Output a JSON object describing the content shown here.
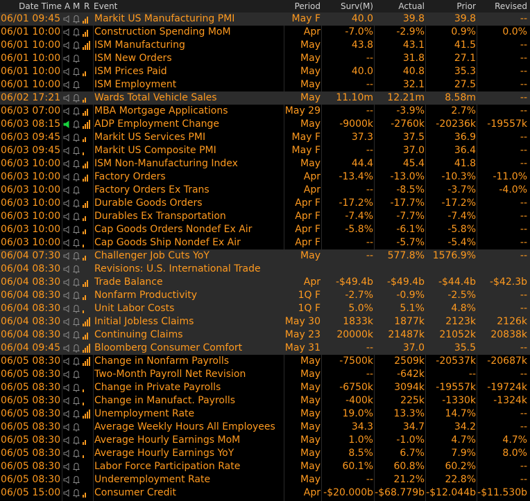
{
  "header": {
    "datetime": "Date Time",
    "a": "A",
    "m": "M",
    "r": "R",
    "event": "Event",
    "period": "Period",
    "surv": "Surv(M)",
    "actual": "Actual",
    "prior": "Prior",
    "revised": "Revised"
  },
  "colors": {
    "accent": "#ff9a1f",
    "alert_green": "#19d13f",
    "row_highlight": "#2c2c2c",
    "header_bg": "#1e1e1e",
    "icon_gray": "#8a8a8a"
  },
  "rows": [
    {
      "datetime": "06/01 09:45",
      "event": "Markit US Manufacturing PMI",
      "period": "May F",
      "surv": "40.0",
      "actual": "39.8",
      "prior": "39.8",
      "revised": "--",
      "bars": 3,
      "alert": false,
      "shade": true
    },
    {
      "datetime": "06/01 10:00",
      "event": "Construction Spending MoM",
      "period": "Apr",
      "surv": "-7.0%",
      "actual": "-2.9%",
      "prior": "0.9%",
      "revised": "0.0%",
      "bars": 3,
      "alert": false,
      "shade": false
    },
    {
      "datetime": "06/01 10:00",
      "event": "ISM Manufacturing",
      "period": "May",
      "surv": "43.8",
      "actual": "43.1",
      "prior": "41.5",
      "revised": "--",
      "bars": 4,
      "alert": false,
      "shade": false
    },
    {
      "datetime": "06/01 10:00",
      "event": "ISM New Orders",
      "period": "May",
      "surv": "--",
      "actual": "31.8",
      "prior": "27.1",
      "revised": "--",
      "bars": 0,
      "alert": false,
      "shade": false
    },
    {
      "datetime": "06/01 10:00",
      "event": "ISM Prices Paid",
      "period": "May",
      "surv": "40.0",
      "actual": "40.8",
      "prior": "35.3",
      "revised": "--",
      "bars": 2,
      "alert": false,
      "shade": false
    },
    {
      "datetime": "06/01 10:00",
      "event": "ISM Employment",
      "period": "May",
      "surv": "--",
      "actual": "32.1",
      "prior": "27.5",
      "revised": "--",
      "bars": 0,
      "alert": false,
      "shade": false
    },
    {
      "datetime": "06/02 17:21",
      "event": "Wards Total Vehicle Sales",
      "period": "May",
      "surv": "11.10m",
      "actual": "12.21m",
      "prior": "8.58m",
      "revised": "--",
      "bars": 2,
      "alert": false,
      "shade": true
    },
    {
      "datetime": "06/03 07:00",
      "event": "MBA Mortgage Applications",
      "period": "May 29",
      "surv": "--",
      "actual": "-3.9%",
      "prior": "2.7%",
      "revised": "--",
      "bars": 3,
      "alert": false,
      "shade": false
    },
    {
      "datetime": "06/03 08:15",
      "event": "ADP Employment Change",
      "period": "May",
      "surv": "-9000k",
      "actual": "-2760k",
      "prior": "-20236k",
      "revised": "-19557k",
      "bars": 4,
      "alert": true,
      "shade": false
    },
    {
      "datetime": "06/03 09:45",
      "event": "Markit US Services PMI",
      "period": "May F",
      "surv": "37.3",
      "actual": "37.5",
      "prior": "36.9",
      "revised": "--",
      "bars": 2,
      "alert": false,
      "shade": false
    },
    {
      "datetime": "06/03 09:45",
      "event": "Markit US Composite PMI",
      "period": "May F",
      "surv": "--",
      "actual": "37.0",
      "prior": "36.4",
      "revised": "--",
      "bars": 1,
      "alert": false,
      "shade": false
    },
    {
      "datetime": "06/03 10:00",
      "event": "ISM Non-Manufacturing Index",
      "period": "May",
      "surv": "44.4",
      "actual": "45.4",
      "prior": "41.8",
      "revised": "--",
      "bars": 3,
      "alert": false,
      "shade": false
    },
    {
      "datetime": "06/03 10:00",
      "event": "Factory Orders",
      "period": "Apr",
      "surv": "-13.4%",
      "actual": "-13.0%",
      "prior": "-10.3%",
      "revised": "-11.0%",
      "bars": 3,
      "alert": false,
      "shade": false
    },
    {
      "datetime": "06/03 10:00",
      "event": "Factory Orders Ex Trans",
      "period": "Apr",
      "surv": "--",
      "actual": "-8.5%",
      "prior": "-3.7%",
      "revised": "-4.0%",
      "bars": 0,
      "alert": false,
      "shade": false
    },
    {
      "datetime": "06/03 10:00",
      "event": "Durable Goods Orders",
      "period": "Apr F",
      "surv": "-17.2%",
      "actual": "-17.7%",
      "prior": "-17.2%",
      "revised": "--",
      "bars": 3,
      "alert": false,
      "shade": false
    },
    {
      "datetime": "06/03 10:00",
      "event": "Durables Ex Transportation",
      "period": "Apr F",
      "surv": "-7.4%",
      "actual": "-7.7%",
      "prior": "-7.4%",
      "revised": "--",
      "bars": 2,
      "alert": false,
      "shade": false
    },
    {
      "datetime": "06/03 10:00",
      "event": "Cap Goods Orders Nondef Ex Air",
      "period": "Apr F",
      "surv": "-5.8%",
      "actual": "-6.1%",
      "prior": "-5.8%",
      "revised": "--",
      "bars": 2,
      "alert": false,
      "shade": false
    },
    {
      "datetime": "06/03 10:00",
      "event": "Cap Goods Ship Nondef Ex Air",
      "period": "Apr F",
      "surv": "--",
      "actual": "-5.7%",
      "prior": "-5.4%",
      "revised": "--",
      "bars": 1,
      "alert": false,
      "shade": false
    },
    {
      "datetime": "06/04 07:30",
      "event": "Challenger Job Cuts YoY",
      "period": "May",
      "surv": "--",
      "actual": "577.8%",
      "prior": "1576.9%",
      "revised": "--",
      "bars": 2,
      "alert": false,
      "shade": true
    },
    {
      "datetime": "06/04 08:30",
      "event": "Revisions: U.S. International Trade",
      "period": "",
      "surv": "",
      "actual": "",
      "prior": "",
      "revised": "",
      "bars": 0,
      "alert": false,
      "shade": true
    },
    {
      "datetime": "06/04 08:30",
      "event": "Trade Balance",
      "period": "Apr",
      "surv": "-$49.4b",
      "actual": "-$49.4b",
      "prior": "-$44.4b",
      "revised": "-$42.3b",
      "bars": 3,
      "alert": false,
      "shade": true
    },
    {
      "datetime": "06/04 08:30",
      "event": "Nonfarm Productivity",
      "period": "1Q F",
      "surv": "-2.7%",
      "actual": "-0.9%",
      "prior": "-2.5%",
      "revised": "--",
      "bars": 2,
      "alert": false,
      "shade": true
    },
    {
      "datetime": "06/04 08:30",
      "event": "Unit Labor Costs",
      "period": "1Q F",
      "surv": "5.0%",
      "actual": "5.1%",
      "prior": "4.8%",
      "revised": "--",
      "bars": 1,
      "alert": false,
      "shade": true
    },
    {
      "datetime": "06/04 08:30",
      "event": "Initial Jobless Claims",
      "period": "May 30",
      "surv": "1833k",
      "actual": "1877k",
      "prior": "2123k",
      "revised": "2126k",
      "bars": 4,
      "alert": false,
      "shade": true
    },
    {
      "datetime": "06/04 08:30",
      "event": "Continuing Claims",
      "period": "May 23",
      "surv": "20000k",
      "actual": "21487k",
      "prior": "21052k",
      "revised": "20838k",
      "bars": 3,
      "alert": false,
      "shade": true
    },
    {
      "datetime": "06/04 09:45",
      "event": "Bloomberg Consumer Comfort",
      "period": "May 31",
      "surv": "--",
      "actual": "37.0",
      "prior": "35.5",
      "revised": "--",
      "bars": 4,
      "alert": false,
      "shade": true
    },
    {
      "datetime": "06/05 08:30",
      "event": "Change in Nonfarm Payrolls",
      "period": "May",
      "surv": "-7500k",
      "actual": "2509k",
      "prior": "-20537k",
      "revised": "-20687k",
      "bars": 4,
      "alert": false,
      "shade": false
    },
    {
      "datetime": "06/05 08:30",
      "event": "Two-Month Payroll Net Revision",
      "period": "May",
      "surv": "--",
      "actual": "-642k",
      "prior": "--",
      "revised": "--",
      "bars": 0,
      "alert": false,
      "shade": false
    },
    {
      "datetime": "06/05 08:30",
      "event": "Change in Private Payrolls",
      "period": "May",
      "surv": "-6750k",
      "actual": "3094k",
      "prior": "-19557k",
      "revised": "-19724k",
      "bars": 1,
      "alert": false,
      "shade": false
    },
    {
      "datetime": "06/05 08:30",
      "event": "Change in Manufact. Payrolls",
      "period": "May",
      "surv": "-400k",
      "actual": "225k",
      "prior": "-1330k",
      "revised": "-1324k",
      "bars": 1,
      "alert": false,
      "shade": false
    },
    {
      "datetime": "06/05 08:30",
      "event": "Unemployment Rate",
      "period": "May",
      "surv": "19.0%",
      "actual": "13.3%",
      "prior": "14.7%",
      "revised": "--",
      "bars": 4,
      "alert": false,
      "shade": false
    },
    {
      "datetime": "06/05 08:30",
      "event": "Average Weekly Hours All Employees",
      "period": "May",
      "surv": "34.3",
      "actual": "34.7",
      "prior": "34.2",
      "revised": "--",
      "bars": 0,
      "alert": false,
      "shade": false
    },
    {
      "datetime": "06/05 08:30",
      "event": "Average Hourly Earnings MoM",
      "period": "May",
      "surv": "1.0%",
      "actual": "-1.0%",
      "prior": "4.7%",
      "revised": "4.7%",
      "bars": 2,
      "alert": false,
      "shade": false
    },
    {
      "datetime": "06/05 08:30",
      "event": "Average Hourly Earnings YoY",
      "period": "May",
      "surv": "8.5%",
      "actual": "6.7%",
      "prior": "7.9%",
      "revised": "8.0%",
      "bars": 1,
      "alert": false,
      "shade": false
    },
    {
      "datetime": "06/05 08:30",
      "event": "Labor Force Participation Rate",
      "period": "May",
      "surv": "60.1%",
      "actual": "60.8%",
      "prior": "60.2%",
      "revised": "--",
      "bars": 0,
      "alert": false,
      "shade": false
    },
    {
      "datetime": "06/05 08:30",
      "event": "Underemployment Rate",
      "period": "May",
      "surv": "--",
      "actual": "21.2%",
      "prior": "22.8%",
      "revised": "--",
      "bars": 0,
      "alert": false,
      "shade": false
    },
    {
      "datetime": "06/05 15:00",
      "event": "Consumer Credit",
      "period": "Apr",
      "surv": "-$20.000b",
      "actual": "-$68.779b",
      "prior": "-$12.044b",
      "revised": "-$11.530b",
      "bars": 2,
      "alert": false,
      "shade": false
    }
  ]
}
